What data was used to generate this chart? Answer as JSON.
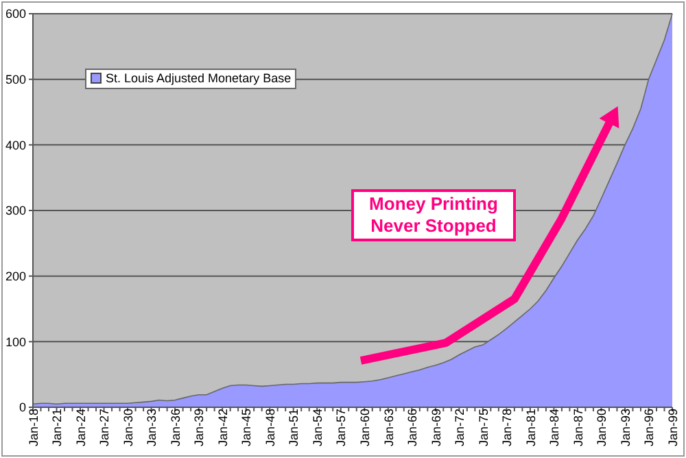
{
  "chart_data": {
    "type": "area",
    "categories": [
      "Jan-18",
      null,
      null,
      "Jan-21",
      null,
      null,
      "Jan-24",
      null,
      null,
      "Jan-27",
      null,
      null,
      "Jan-30",
      null,
      null,
      "Jan-33",
      null,
      null,
      "Jan-36",
      null,
      null,
      "Jan-39",
      null,
      null,
      "Jan-42",
      null,
      null,
      "Jan-45",
      null,
      null,
      "Jan-48",
      null,
      null,
      "Jan-51",
      null,
      null,
      "Jan-54",
      null,
      null,
      "Jan-57",
      null,
      null,
      "Jan-60",
      null,
      null,
      "Jan-63",
      null,
      null,
      "Jan-66",
      null,
      null,
      "Jan-69",
      null,
      null,
      "Jan-72",
      null,
      null,
      "Jan-75",
      null,
      null,
      "Jan-78",
      null,
      null,
      "Jan-81",
      null,
      null,
      "Jan-84",
      null,
      null,
      "Jan-87",
      null,
      null,
      "Jan-90",
      null,
      null,
      "Jan-93",
      null,
      null,
      "Jan-96",
      null,
      null,
      "Jan-99"
    ],
    "series": [
      {
        "name": "St. Louis Adjusted Monetary Base",
        "color": "#9999ff",
        "values": [
          5,
          6,
          6,
          5,
          6,
          6,
          6,
          6,
          6,
          6,
          6,
          6,
          6,
          7,
          8,
          9,
          11,
          10,
          11,
          14,
          17,
          19,
          19,
          24,
          29,
          33,
          34,
          34,
          33,
          32,
          33,
          34,
          35,
          35,
          36,
          36,
          37,
          37,
          37,
          38,
          38,
          38,
          39,
          40,
          42,
          45,
          48,
          51,
          54,
          57,
          61,
          64,
          68,
          73,
          80,
          86,
          92,
          95,
          103,
          111,
          120,
          130,
          140,
          150,
          162,
          178,
          197,
          215,
          235,
          255,
          272,
          292,
          318,
          345,
          372,
          400,
          425,
          455,
          500,
          530,
          560,
          600
        ]
      }
    ],
    "ylim": [
      0,
      600
    ],
    "yticks": [
      0,
      100,
      200,
      300,
      400,
      500,
      600
    ],
    "grid": "y",
    "legend": "top left",
    "annotations": [
      "Money Printing Never Stopped"
    ]
  }
}
